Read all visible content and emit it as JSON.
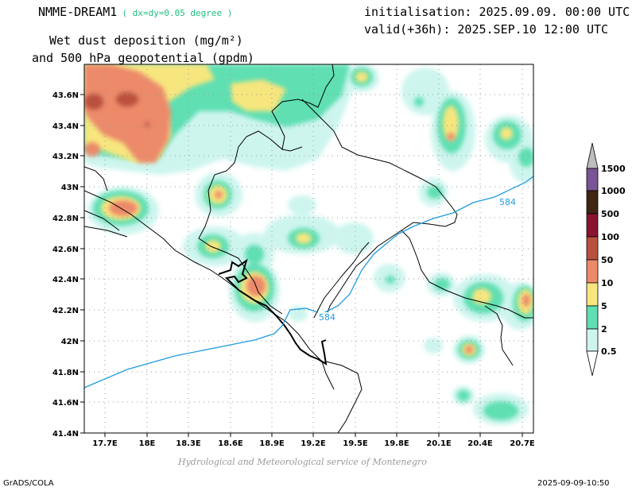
{
  "header": {
    "model": "NMME-DREAM1",
    "resolution": "( dx=dy=0.05 degree )",
    "init": "initialisation: 2025.09.09. 00:00 UTC",
    "valid": "valid(+36h): 2025.SEP.10 12:00 UTC",
    "variable": "Wet dust deposition (mg/m²)",
    "variable2": "and 500 hPa geopotential (gpdm)"
  },
  "map": {
    "lat_labels": [
      "43.6N",
      "43.4N",
      "43.2N",
      "43N",
      "42.8N",
      "42.6N",
      "42.4N",
      "42.2N",
      "42N",
      "41.8N",
      "41.6N",
      "41.4N"
    ],
    "lon_labels": [
      "17.7E",
      "18E",
      "18.3E",
      "18.6E",
      "18.9E",
      "19.2E",
      "19.5E",
      "19.8E",
      "20.1E",
      "20.4E",
      "20.7E"
    ],
    "contour_labels": [
      "584",
      "584"
    ]
  },
  "legend": {
    "levels": [
      "0.5",
      "2",
      "5",
      "10",
      "50",
      "100",
      "500",
      "1000",
      "1500"
    ],
    "colors": [
      "#cdf5ee",
      "#5fdfb2",
      "#f7e67e",
      "#ec8a6a",
      "#b9513e",
      "#8a1430",
      "#3f2512",
      "#7a5494",
      "#bdbdbd"
    ]
  },
  "footer": {
    "credit": "Hydrological and Meteorological service of Montenegro",
    "left": "GrADS/COLA",
    "right": "2025-09-09-10:50"
  }
}
